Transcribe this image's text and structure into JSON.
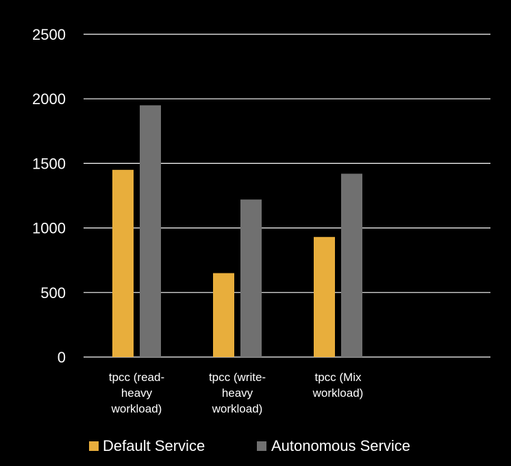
{
  "colors": {
    "background": "#000000",
    "gridline": "#ffffff",
    "text": "#ffffff"
  },
  "chart_data": {
    "type": "bar",
    "title": "",
    "xlabel": "",
    "ylabel": "",
    "ylim": [
      0,
      2500
    ],
    "yticks": [
      "0",
      "500",
      "1000",
      "1500",
      "2000",
      "2500"
    ],
    "ytick_values": [
      0,
      500,
      1000,
      1500,
      2000,
      2500
    ],
    "grid": true,
    "legend_position": "bottom",
    "categories": [
      [
        "tpcc (read-",
        "heavy",
        "workload)"
      ],
      [
        "tpcc (write-",
        "heavy",
        "workload)"
      ],
      [
        "tpcc (Mix",
        "workload)"
      ]
    ],
    "series": [
      {
        "name": "Default Service",
        "color": "#E8AE3C",
        "values": [
          1450,
          650,
          930
        ]
      },
      {
        "name": "Autonomous Service",
        "color": "#707070",
        "values": [
          1950,
          1220,
          1420
        ]
      }
    ]
  }
}
